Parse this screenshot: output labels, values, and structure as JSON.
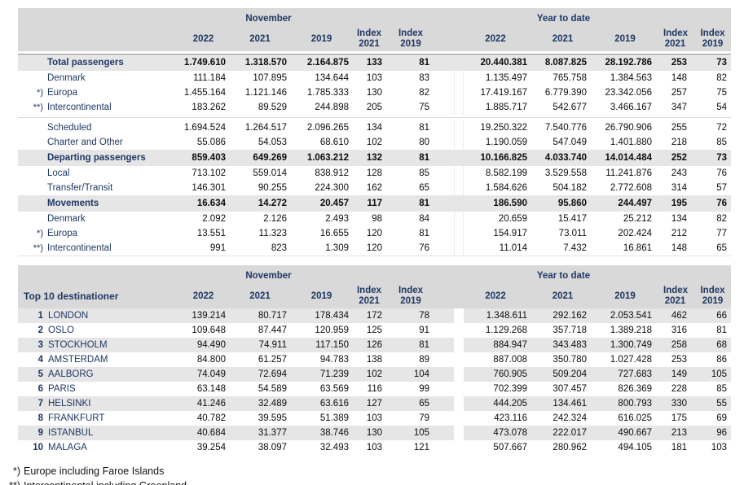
{
  "report": {
    "colors": {
      "header_bg": "#D9D9D9",
      "band_bg": "#E7E6E6",
      "stripe_bg": "#E7E6E6",
      "heading_text": "#1F3864",
      "number_text": "#0d0d0d"
    },
    "period_headers": {
      "november": "November",
      "year_to_date": "Year to date"
    },
    "year_headers": [
      "2022",
      "2021",
      "2019"
    ],
    "index_headers": [
      {
        "line1": "Index",
        "line2": "2021"
      },
      {
        "line1": "Index",
        "line2": "2019"
      }
    ],
    "traffic_table": {
      "rows": [
        {
          "type": "band",
          "label": "Total passengers",
          "prefix": "",
          "values": [
            "1.749.610",
            "1.318.570",
            "2.164.875",
            "133",
            "81",
            "20.440.381",
            "8.087.825",
            "28.192.786",
            "253",
            "73"
          ]
        },
        {
          "type": "row",
          "label": "Denmark",
          "prefix": "",
          "values": [
            "111.184",
            "107.895",
            "134.644",
            "103",
            "83",
            "1.135.497",
            "765.758",
            "1.384.563",
            "148",
            "82"
          ]
        },
        {
          "type": "row",
          "label": "Europa",
          "prefix": "*)",
          "values": [
            "1.455.164",
            "1.121.146",
            "1.785.333",
            "130",
            "82",
            "17.419.167",
            "6.779.390",
            "23.342.056",
            "257",
            "75"
          ]
        },
        {
          "type": "row",
          "label": "Intercontinental",
          "prefix": "**)",
          "values": [
            "183.262",
            "89.529",
            "244.898",
            "205",
            "75",
            "1.885.717",
            "542.677",
            "3.466.167",
            "347",
            "54"
          ]
        },
        {
          "type": "sep"
        },
        {
          "type": "row",
          "label": "Scheduled",
          "prefix": "",
          "values": [
            "1.694.524",
            "1.264.517",
            "2.096.265",
            "134",
            "81",
            "19.250.322",
            "7.540.776",
            "26.790.906",
            "255",
            "72"
          ]
        },
        {
          "type": "row",
          "label": "Charter and Other",
          "prefix": "",
          "values": [
            "55.086",
            "54.053",
            "68.610",
            "102",
            "80",
            "1.190.059",
            "547.049",
            "1.401.880",
            "218",
            "85"
          ]
        },
        {
          "type": "band",
          "label": "Departing passengers",
          "prefix": "",
          "values": [
            "859.403",
            "649.269",
            "1.063.212",
            "132",
            "81",
            "10.166.825",
            "4.033.740",
            "14.014.484",
            "252",
            "73"
          ]
        },
        {
          "type": "row",
          "label": "Local",
          "prefix": "",
          "values": [
            "713.102",
            "559.014",
            "838.912",
            "128",
            "85",
            "8.582.199",
            "3.529.558",
            "11.241.876",
            "243",
            "76"
          ]
        },
        {
          "type": "row",
          "label": "Transfer/Transit",
          "prefix": "",
          "values": [
            "146.301",
            "90.255",
            "224.300",
            "162",
            "65",
            "1.584.626",
            "504.182",
            "2.772.608",
            "314",
            "57"
          ]
        },
        {
          "type": "band",
          "label": "Movements",
          "prefix": "",
          "values": [
            "16.634",
            "14.272",
            "20.457",
            "117",
            "81",
            "186.590",
            "95.860",
            "244.497",
            "195",
            "76"
          ]
        },
        {
          "type": "row",
          "label": "Denmark",
          "prefix": "",
          "values": [
            "2.092",
            "2.126",
            "2.493",
            "98",
            "84",
            "20.659",
            "15.417",
            "25.212",
            "134",
            "82"
          ]
        },
        {
          "type": "row",
          "label": "Europa",
          "prefix": "*)",
          "values": [
            "13.551",
            "11.323",
            "16.655",
            "120",
            "81",
            "154.917",
            "73.011",
            "202.424",
            "212",
            "77"
          ]
        },
        {
          "type": "row",
          "label": "Intercontinental",
          "prefix": "**)",
          "values": [
            "991",
            "823",
            "1.309",
            "120",
            "76",
            "11.014",
            "7.432",
            "16.861",
            "148",
            "65"
          ]
        }
      ]
    },
    "top10_table": {
      "title": "Top 10 destinationer",
      "rows": [
        {
          "rank": "1",
          "label": "LONDON",
          "values": [
            "139.214",
            "80.717",
            "178.434",
            "172",
            "78",
            "1.348.611",
            "292.162",
            "2.053.541",
            "462",
            "66"
          ]
        },
        {
          "rank": "2",
          "label": "OSLO",
          "values": [
            "109.648",
            "87.447",
            "120.959",
            "125",
            "91",
            "1.129.268",
            "357.718",
            "1.389.218",
            "316",
            "81"
          ]
        },
        {
          "rank": "3",
          "label": "STOCKHOLM",
          "values": [
            "94.490",
            "74.911",
            "117.150",
            "126",
            "81",
            "884.947",
            "343.483",
            "1.300.749",
            "258",
            "68"
          ]
        },
        {
          "rank": "4",
          "label": "AMSTERDAM",
          "values": [
            "84.800",
            "61.257",
            "94.783",
            "138",
            "89",
            "887.008",
            "350.780",
            "1.027.428",
            "253",
            "86"
          ]
        },
        {
          "rank": "5",
          "label": "AALBORG",
          "values": [
            "74.049",
            "72.694",
            "71.239",
            "102",
            "104",
            "760.905",
            "509.204",
            "727.683",
            "149",
            "105"
          ]
        },
        {
          "rank": "6",
          "label": "PARIS",
          "values": [
            "63.148",
            "54.589",
            "63.569",
            "116",
            "99",
            "702.399",
            "307.457",
            "826.369",
            "228",
            "85"
          ]
        },
        {
          "rank": "7",
          "label": "HELSINKI",
          "values": [
            "41.246",
            "32.489",
            "63.616",
            "127",
            "65",
            "444.205",
            "134.461",
            "800.793",
            "330",
            "55"
          ]
        },
        {
          "rank": "8",
          "label": "FRANKFURT",
          "values": [
            "40.782",
            "39.595",
            "51.389",
            "103",
            "79",
            "423.116",
            "242.324",
            "616.025",
            "175",
            "69"
          ]
        },
        {
          "rank": "9",
          "label": "ISTANBUL",
          "values": [
            "40.684",
            "31.377",
            "38.746",
            "130",
            "105",
            "473.078",
            "222.017",
            "490.667",
            "213",
            "96"
          ]
        },
        {
          "rank": "10",
          "label": "MALAGA",
          "values": [
            "39.254",
            "38.097",
            "32.493",
            "103",
            "121",
            "507.667",
            "280.962",
            "494.105",
            "181",
            "103"
          ]
        }
      ]
    },
    "footnotes": [
      {
        "marker": "*)",
        "text": "Europe including Faroe Islands"
      },
      {
        "marker": "**)",
        "text": "Intercontinental including Greenland"
      }
    ]
  }
}
